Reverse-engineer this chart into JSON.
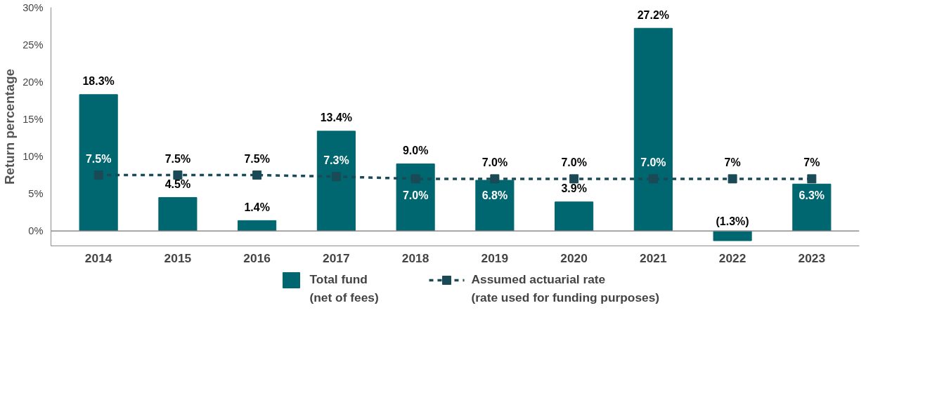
{
  "chart_data": {
    "type": "bar",
    "ylabel": "Return percentage",
    "categories": [
      "2014",
      "2015",
      "2016",
      "2017",
      "2018",
      "2019",
      "2020",
      "2021",
      "2022",
      "2023"
    ],
    "series": [
      {
        "name": "Total fund\n(net of fees)",
        "color": "#00666f",
        "values": [
          18.3,
          4.5,
          1.4,
          13.4,
          9.0,
          6.8,
          3.9,
          27.2,
          -1.3,
          6.3
        ],
        "value_labels": [
          "18.3%",
          "4.5%",
          "1.4%",
          "13.4%",
          "9.0%",
          "6.8%",
          "3.9%",
          "27.2%",
          "(1.3%)",
          "6.3%"
        ]
      },
      {
        "name": "Assumed actuarial rate\n(rate used for funding purposes)",
        "type": "line",
        "color": "#1b4a57",
        "marker": "square",
        "line_style": "dashed",
        "values": [
          7.5,
          7.5,
          7.5,
          7.3,
          7.0,
          7.0,
          7.0,
          7.0,
          7,
          7
        ],
        "value_labels": [
          "7.5%",
          "7.5%",
          "7.5%",
          "7.3%",
          "7.0%",
          "7.0%",
          "7.0%",
          "7.0%",
          "7%",
          "7%"
        ]
      }
    ],
    "ylim": [
      -2,
      30
    ],
    "yticks": [
      {
        "value": 0,
        "label": "0%"
      },
      {
        "value": 5,
        "label": "5%"
      },
      {
        "value": 10,
        "label": "10%"
      },
      {
        "value": 15,
        "label": "15%"
      },
      {
        "value": 20,
        "label": "20%"
      },
      {
        "value": 25,
        "label": "25%"
      },
      {
        "value": 30,
        "label": "30%"
      }
    ],
    "ref_lines": [
      {
        "axis": "y",
        "value": 0,
        "color": "#8c8c8c"
      }
    ],
    "grid": false,
    "legend": "bottom"
  }
}
